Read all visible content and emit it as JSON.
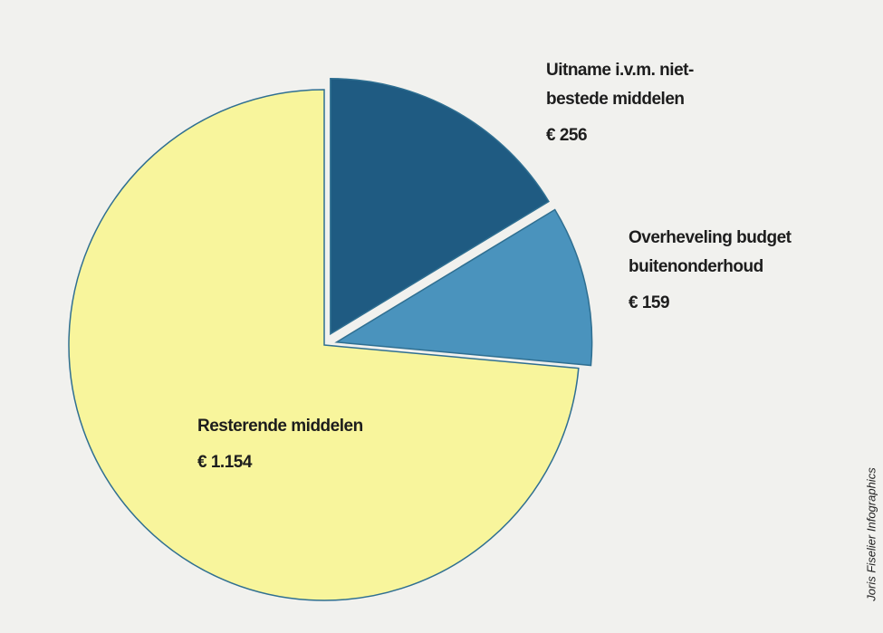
{
  "chart_data": {
    "type": "pie",
    "categories": [
      "Uitname i.v.m. niet-\nbestede middelen",
      "Overheveling budget\nbuitenonderhoud",
      "Resterende middelen"
    ],
    "values": [
      256,
      159,
      1154
    ],
    "value_labels": [
      "€ 256",
      "€ 159",
      "€ 1.154"
    ],
    "colors": [
      "#1f5b82",
      "#4a93bd",
      "#f8f59c"
    ],
    "credit": "Joris Fiselier Infographics"
  }
}
